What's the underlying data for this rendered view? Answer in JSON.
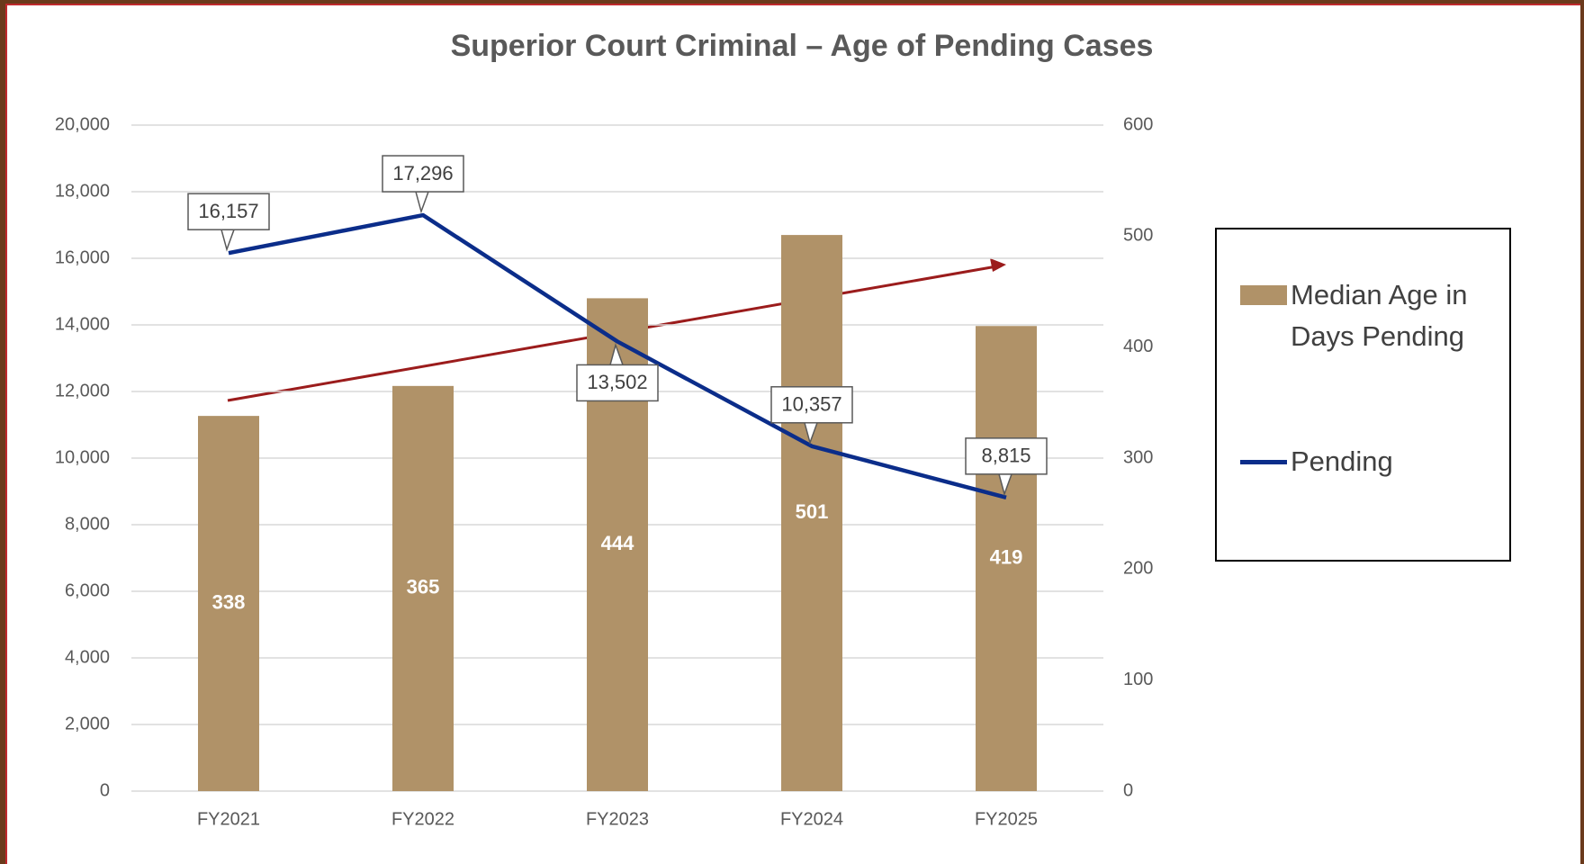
{
  "chart_data": {
    "type": "bar_line",
    "title": "Superior Court Criminal – Age of Pending Cases",
    "categories": [
      "FY2021",
      "FY2022",
      "FY2023",
      "FY2024",
      "FY2025"
    ],
    "series": [
      {
        "name": "Median Age in Days Pending",
        "type": "bar",
        "axis": "y2",
        "color": "#b09268",
        "values": [
          338,
          365,
          444,
          501,
          419
        ]
      },
      {
        "name": "Pending",
        "type": "line",
        "axis": "y",
        "color": "#0b2d8a",
        "values": [
          16157,
          17296,
          13502,
          10357,
          8815
        ],
        "value_labels": [
          "16,157",
          "17,296",
          "13,502",
          "10,357",
          "8,815"
        ]
      }
    ],
    "ylim": [
      0,
      20000
    ],
    "yticks": [
      0,
      {
        "value": 2000,
        "label": "2,000"
      },
      {
        "value": 4000,
        "label": "4,000"
      },
      {
        "value": 6000,
        "label": "6,000"
      },
      {
        "value": 8000,
        "label": "8,000"
      },
      {
        "value": 10000,
        "label": "10,000"
      },
      {
        "value": 12000,
        "label": "12,000"
      },
      {
        "value": 14000,
        "label": "14,000"
      },
      {
        "value": 16000,
        "label": "16,000"
      },
      {
        "value": 18000,
        "label": "18,000"
      },
      {
        "value": 20000,
        "label": "20,000"
      }
    ],
    "y2lim": [
      0,
      600
    ],
    "y2ticks": [
      0,
      100,
      200,
      300,
      400,
      500,
      600
    ],
    "grid": true,
    "legend": "right"
  }
}
